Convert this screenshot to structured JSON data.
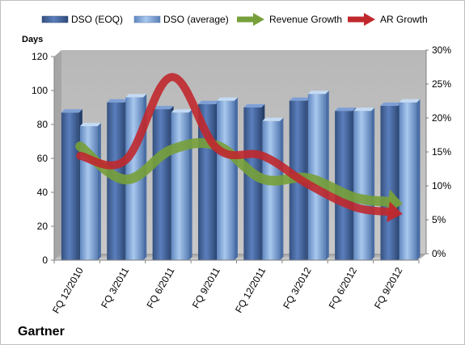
{
  "chart_data": {
    "type": "bar",
    "title": "",
    "company_label": "Gartner",
    "ylabel": "Days",
    "y2label": "",
    "ylim": [
      0,
      120
    ],
    "y_ticks": [
      "0",
      "20",
      "40",
      "60",
      "80",
      "100",
      "120"
    ],
    "y2lim": [
      0,
      30
    ],
    "y2_ticks": [
      "0%",
      "5%",
      "10%",
      "15%",
      "20%",
      "25%",
      "30%"
    ],
    "categories": [
      "FQ 12/2010",
      "FQ 3/2011",
      "FQ 6/2011",
      "FQ 9/2011",
      "FQ 12/2011",
      "FQ 3/2012",
      "FQ 6/2012",
      "FQ 9/2012"
    ],
    "series": [
      {
        "name": "DSO (EOQ)",
        "kind": "bar",
        "axis": "left",
        "color": "#4f6fa8",
        "values": [
          87,
          93,
          89,
          92,
          90,
          94,
          88,
          91
        ]
      },
      {
        "name": "DSO (average)",
        "kind": "bar",
        "axis": "left",
        "color": "#8db3e2",
        "values": [
          79,
          96,
          87,
          94,
          82,
          98,
          88,
          93
        ]
      },
      {
        "name": "Revenue Growth",
        "kind": "arrow-line",
        "axis": "right",
        "color": "#77a03a",
        "values": [
          16.3,
          11.4,
          15.8,
          16.4,
          11.5,
          11.6,
          8.8,
          7.9
        ]
      },
      {
        "name": "AR Growth",
        "kind": "arrow-line",
        "axis": "right",
        "color": "#c0282d",
        "values": [
          14.9,
          14.3,
          26.5,
          16.0,
          14.9,
          10.7,
          7.4,
          6.4
        ]
      }
    ],
    "grid": false,
    "legend_position": "top",
    "plot_background": "#c0c0c0"
  }
}
